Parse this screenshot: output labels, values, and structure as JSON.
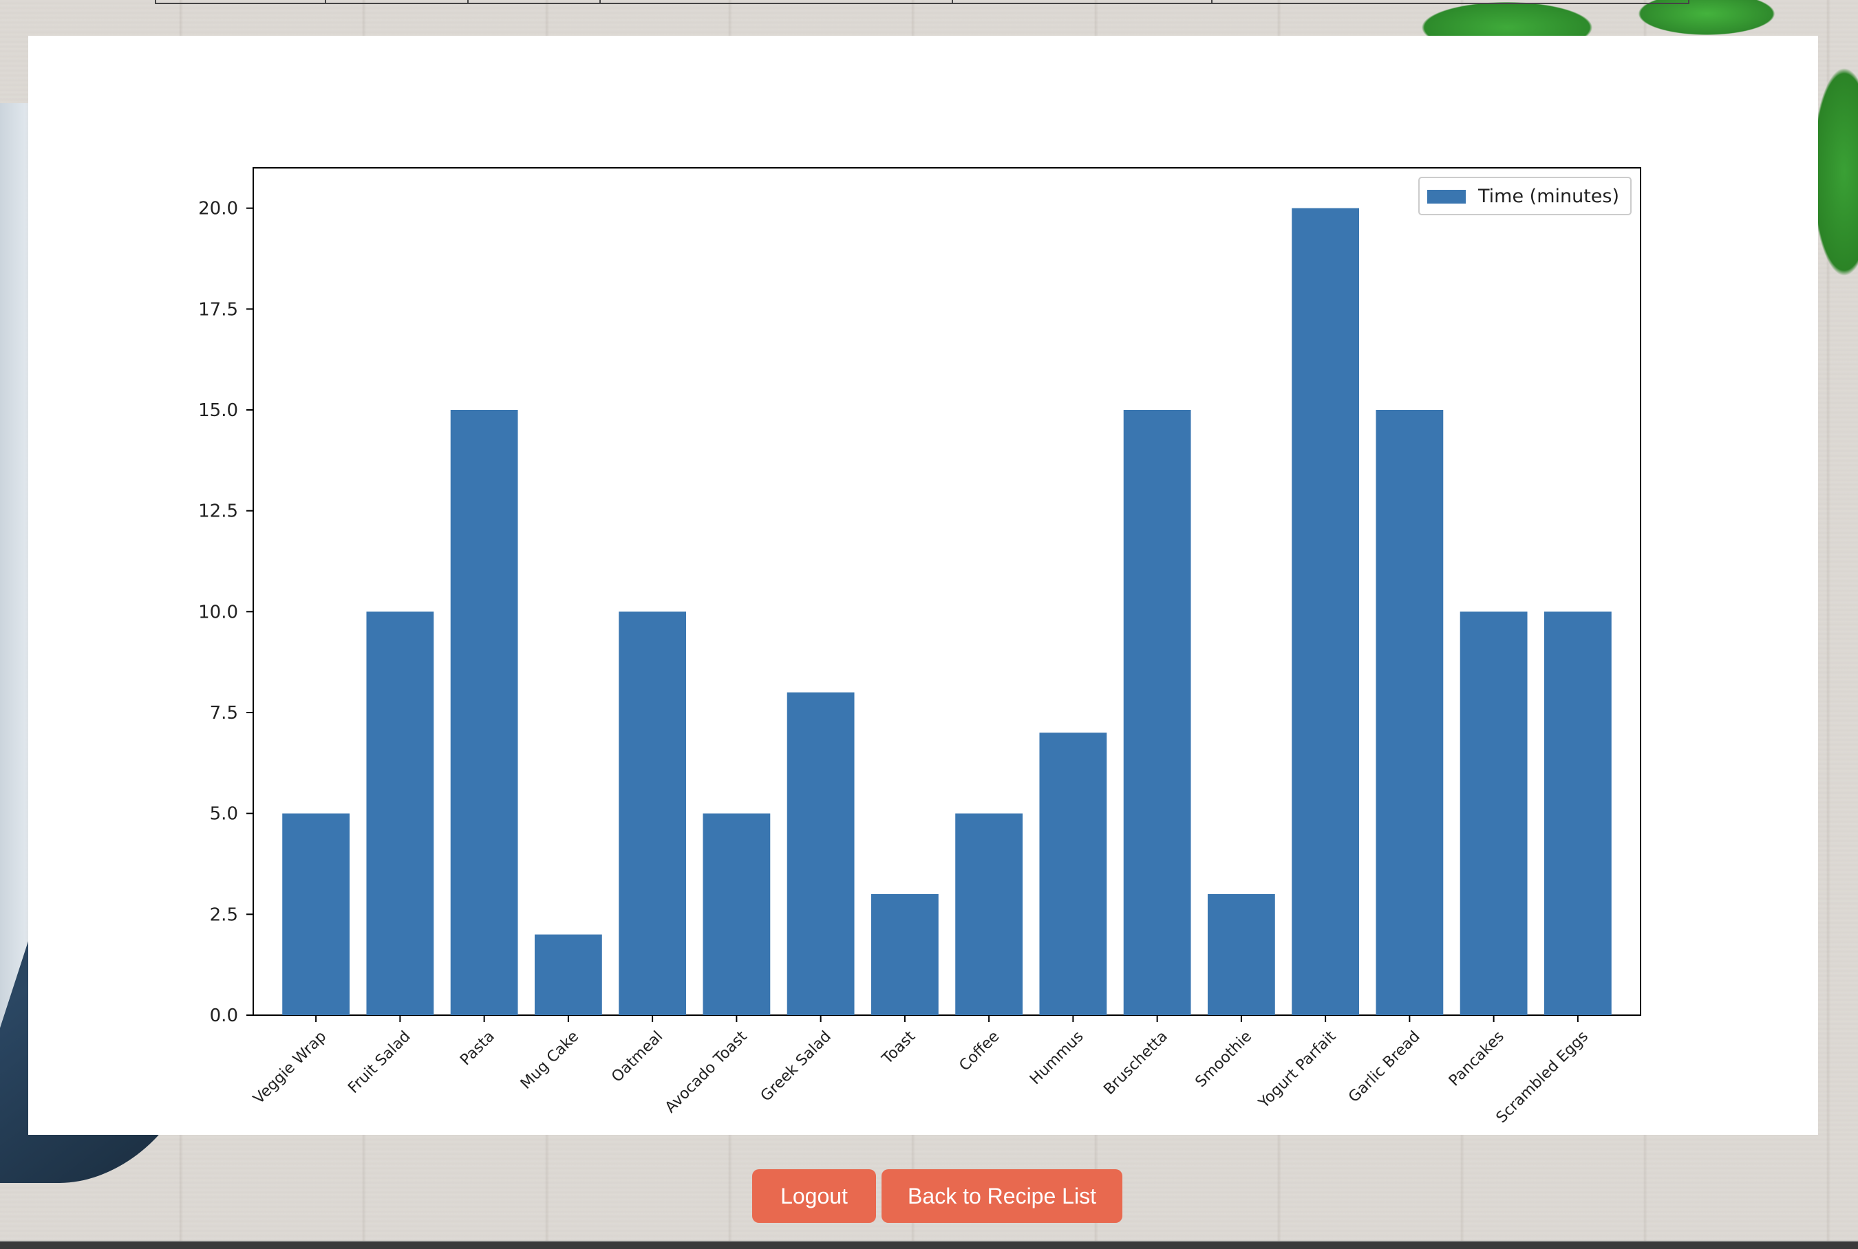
{
  "buttons": {
    "logout": "Logout",
    "back": "Back to Recipe List"
  },
  "colors": {
    "bar": "#3a76b0",
    "button": "#e8694f",
    "panel": "#ffffff"
  },
  "chart_data": {
    "type": "bar",
    "title": "",
    "xlabel": "",
    "ylabel": "",
    "categories": [
      "Veggie Wrap",
      "Fruit Salad",
      "Pasta",
      "Mug Cake",
      "Oatmeal",
      "Avocado Toast",
      "Greek Salad",
      "Toast",
      "Coffee",
      "Hummus",
      "Bruschetta",
      "Smoothie",
      "Yogurt Parfait",
      "Garlic Bread",
      "Pancakes",
      "Scrambled Eggs"
    ],
    "series": [
      {
        "name": "Time (minutes)",
        "values": [
          5,
          10,
          15,
          2,
          10,
          5,
          8,
          3,
          5,
          7,
          15,
          3,
          20,
          15,
          10,
          10
        ]
      }
    ],
    "ylim": [
      0,
      21
    ],
    "yticks": [
      "0.0",
      "2.5",
      "5.0",
      "7.5",
      "10.0",
      "12.5",
      "15.0",
      "17.5",
      "20.0"
    ],
    "legend_position": "top-right",
    "grid": false
  }
}
